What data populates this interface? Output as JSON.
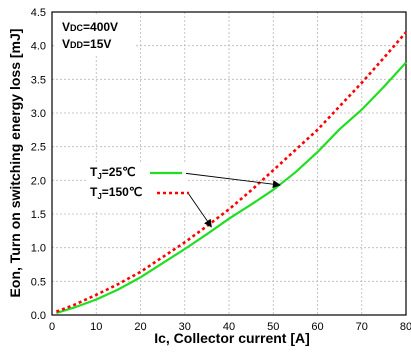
{
  "chart_data": {
    "type": "line",
    "xlabel": "Ic, Collector current [A]",
    "ylabel": "Eon, Turn on switching energy loss [mJ]",
    "xlim": [
      0,
      80
    ],
    "ylim": [
      0,
      4.5
    ],
    "x_ticks": [
      "0",
      "10",
      "20",
      "30",
      "40",
      "50",
      "60",
      "70",
      "80"
    ],
    "y_ticks": [
      "0.0",
      "0.5",
      "1.0",
      "1.5",
      "2.0",
      "2.5",
      "3.0",
      "3.5",
      "4.0",
      "4.5"
    ],
    "grid": true,
    "conditions": {
      "vdc": {
        "main": "V",
        "sub": "DC",
        "value": "=400V"
      },
      "vdd": {
        "main": "V",
        "sub": "DD",
        "value": "=15V"
      }
    },
    "legend_position": "center-left",
    "series": [
      {
        "legend": {
          "main": "T",
          "sub": "J",
          "value": "=25℃"
        },
        "color": "#22dd22",
        "style": "solid",
        "x": [
          1,
          5,
          10,
          15,
          20,
          25,
          30,
          35,
          40,
          45,
          50,
          55,
          60,
          65,
          70,
          75,
          80
        ],
        "y": [
          0.03,
          0.11,
          0.23,
          0.38,
          0.56,
          0.77,
          0.98,
          1.2,
          1.43,
          1.64,
          1.86,
          2.12,
          2.42,
          2.76,
          3.05,
          3.39,
          3.75
        ]
      },
      {
        "legend": {
          "main": "T",
          "sub": "J",
          "value": "=150℃"
        },
        "color": "#ff0000",
        "style": "dotted",
        "x": [
          1,
          5,
          10,
          15,
          20,
          25,
          30,
          35,
          40,
          45,
          50,
          55,
          60,
          65,
          70,
          75,
          80
        ],
        "y": [
          0.05,
          0.15,
          0.3,
          0.46,
          0.64,
          0.86,
          1.08,
          1.32,
          1.57,
          1.85,
          2.15,
          2.45,
          2.75,
          3.1,
          3.45,
          3.82,
          4.2
        ]
      }
    ]
  }
}
